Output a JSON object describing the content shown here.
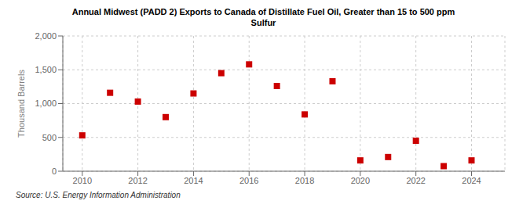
{
  "chart_data": {
    "type": "scatter",
    "title": "Annual Midwest (PADD 2) Exports to Canada of Distillate Fuel Oil, Greater than 15 to 500 ppm\nSulfur",
    "ylabel": "Thousand Barrels",
    "annotations": [
      "Source: U.S. Energy Information Administration"
    ],
    "x": [
      2010,
      2011,
      2012,
      2013,
      2014,
      2015,
      2016,
      2017,
      2018,
      2019,
      2020,
      2021,
      2022,
      2023,
      2024
    ],
    "values": [
      530,
      1160,
      1030,
      800,
      1150,
      1450,
      1580,
      1260,
      840,
      1330,
      160,
      210,
      450,
      75,
      160
    ],
    "color": "#cc0000",
    "marker": "square",
    "xlim": [
      2009.3,
      2025.2
    ],
    "xticks": [
      2010,
      2012,
      2014,
      2016,
      2018,
      2020,
      2022,
      2024
    ],
    "ylim": [
      0,
      2000
    ],
    "yticks": [
      0,
      500,
      {
        "value": 1000,
        "label": "1,000"
      },
      {
        "value": 1500,
        "label": "1,500"
      },
      {
        "value": 2000,
        "label": "2,000"
      }
    ],
    "grid": true
  }
}
